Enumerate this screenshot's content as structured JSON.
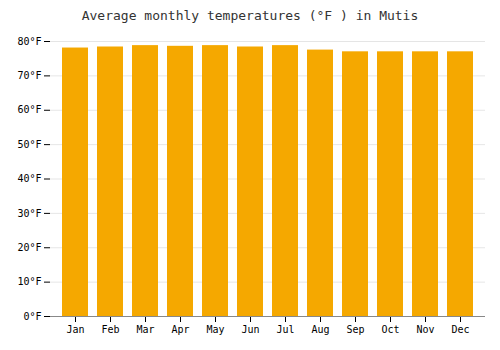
{
  "chart_data": {
    "type": "bar",
    "title": "Average monthly temperatures (°F ) in Mutis",
    "categories": [
      "Jan",
      "Feb",
      "Mar",
      "Apr",
      "May",
      "Jun",
      "Jul",
      "Aug",
      "Sep",
      "Oct",
      "Nov",
      "Dec"
    ],
    "values": [
      78.1,
      78.4,
      78.8,
      78.6,
      78.8,
      78.4,
      78.8,
      77.5,
      77.0,
      77.0,
      77.0,
      77.0
    ],
    "color": "#F5A800",
    "ylim": [
      0,
      80
    ],
    "yticks": [
      {
        "value": 0,
        "label": "0°F"
      },
      {
        "value": 10,
        "label": "10°F"
      },
      {
        "value": 20,
        "label": "20°F"
      },
      {
        "value": 30,
        "label": "30°F"
      },
      {
        "value": 40,
        "label": "40°F"
      },
      {
        "value": 50,
        "label": "50°F"
      },
      {
        "value": 60,
        "label": "60°F"
      },
      {
        "value": 70,
        "label": "70°F"
      },
      {
        "value": 80,
        "label": "80°F"
      }
    ],
    "grid": true
  }
}
